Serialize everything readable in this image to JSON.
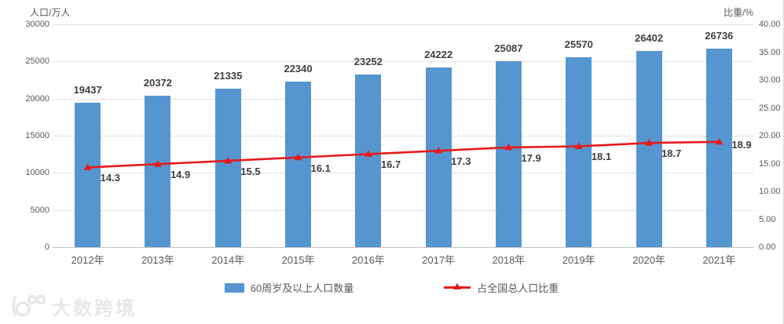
{
  "chart_data": {
    "type": "bar",
    "combo": "bar+line",
    "title": "",
    "categories": [
      "2012年",
      "2013年",
      "2014年",
      "2015年",
      "2016年",
      "2017年",
      "2018年",
      "2019年",
      "2020年",
      "2021年"
    ],
    "series": [
      {
        "name": "60周岁及以上人口数量",
        "type": "bar",
        "axis": "left",
        "color": "#5696D0",
        "values": [
          19437,
          20372,
          21335,
          22340,
          23252,
          24222,
          25087,
          25570,
          26402,
          26736
        ]
      },
      {
        "name": "占全国总人口比重",
        "type": "line",
        "axis": "right",
        "color": "#E51A1C",
        "values": [
          14.3,
          14.9,
          15.5,
          16.1,
          16.7,
          17.3,
          17.9,
          18.1,
          18.7,
          18.9
        ]
      }
    ],
    "left_axis": {
      "title": "人口/万人",
      "min": 0,
      "max": 30000,
      "tick_step": 5000,
      "tick_labels": [
        "30000",
        "25000",
        "20000",
        "15000",
        "10000",
        "5000",
        "0"
      ]
    },
    "right_axis": {
      "title": "比重/%",
      "min": 0,
      "max": 40,
      "tick_step": 5,
      "tick_labels": [
        "40.00",
        "35.00",
        "30.00",
        "25.00",
        "20.00",
        "15.00",
        "10.00",
        "5.00",
        "0.00"
      ]
    },
    "grid": true,
    "legend_position": "bottom"
  },
  "watermark": {
    "text": "大数跨境"
  }
}
